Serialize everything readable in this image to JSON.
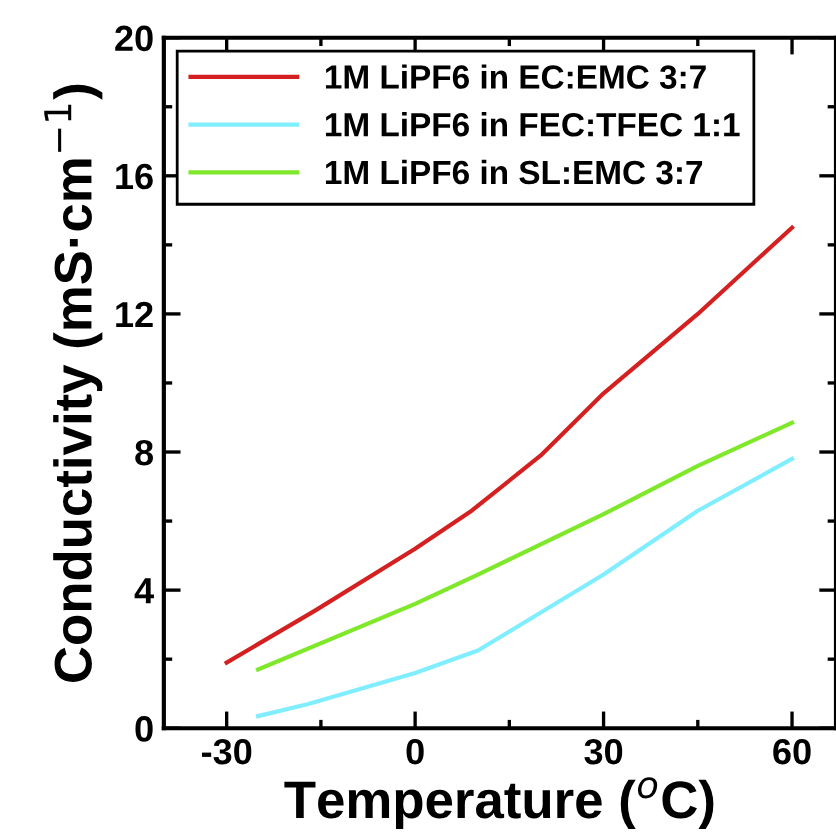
{
  "chart_data": {
    "type": "line",
    "xlabel": "Temperature ($^{o}$C)",
    "ylabel": "Conductivity (mS·cm$^{−1}$)",
    "xlim": [
      -40,
      67
    ],
    "xticks": [
      -30,
      0,
      30,
      60
    ],
    "ylim": [
      0,
      20
    ],
    "yticks": [
      0,
      4,
      8,
      12,
      16,
      20
    ],
    "grid": false,
    "legend": "top left",
    "marker": "none",
    "line_style": "solid",
    "series": [
      {
        "name": "1M LiPF6 in EC:EMC 3:7",
        "color": "#d42020",
        "x": [
          -30,
          -16,
          0,
          9,
          20,
          30,
          45,
          60
        ],
        "values": [
          1.9,
          3.4,
          5.2,
          6.3,
          7.9,
          9.7,
          12.0,
          14.5
        ]
      },
      {
        "name": "1M LiPF6 in FEC:TFEC 1:1",
        "color": "#80eeff",
        "x": [
          -25,
          -17,
          0,
          10,
          30,
          45,
          60
        ],
        "values": [
          0.35,
          0.7,
          1.6,
          2.25,
          4.45,
          6.3,
          7.8
        ]
      },
      {
        "name": "1M LiPF6 in SL:EMC 3:7",
        "color": "#7fe82a",
        "x": [
          -25,
          0,
          10,
          30,
          45,
          60
        ],
        "values": [
          1.7,
          3.6,
          4.45,
          6.2,
          7.6,
          8.85
        ]
      }
    ]
  }
}
